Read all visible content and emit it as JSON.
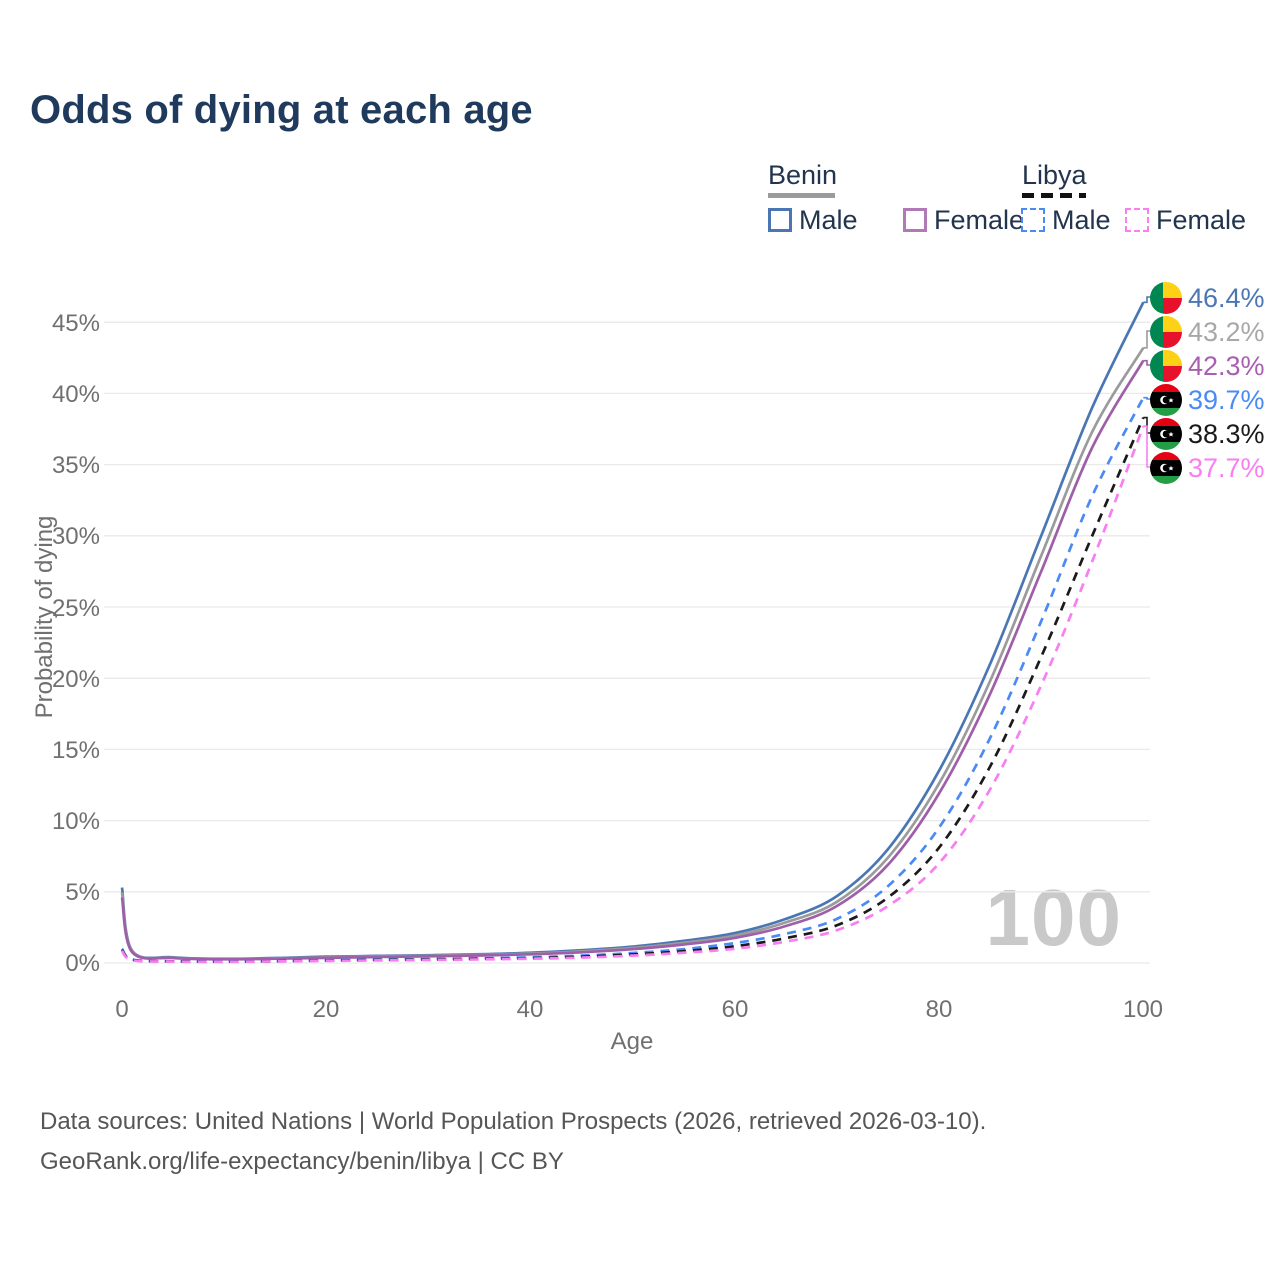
{
  "title": "Odds of dying at each age",
  "legend": {
    "groups": [
      {
        "label": "Benin",
        "line_style": "solid",
        "underline_color": "#9b9b9b",
        "items": [
          {
            "label": "Male",
            "color": "#4a77b4"
          },
          {
            "label": "Female",
            "color": "#b279b8"
          }
        ]
      },
      {
        "label": "Libya",
        "line_style": "dashed",
        "underline_color": "#111111",
        "items": [
          {
            "label": "Male",
            "color": "#4a8af4"
          },
          {
            "label": "Female",
            "color": "#f87ef2"
          }
        ]
      }
    ]
  },
  "watermark_age": "100",
  "footer": {
    "line1": "Data sources: United Nations | World Population Prospects (2026, retrieved 2026-03-10).",
    "line2": "GeoRank.org/life-expectancy/benin/libya | CC BY"
  },
  "chart_data": {
    "type": "line",
    "title": "Odds of dying at each age",
    "xlabel": "Age",
    "ylabel": "Probability of dying",
    "xlim": [
      0,
      100
    ],
    "ylim": [
      0,
      47
    ],
    "grid": "horizontal",
    "legend_position": "top-right",
    "x_tick_values": [
      0,
      20,
      40,
      60,
      80,
      100
    ],
    "x_tick_labels": [
      "0",
      "20",
      "40",
      "60",
      "80",
      "100"
    ],
    "y_tick_values": [
      0,
      5,
      10,
      15,
      20,
      25,
      30,
      35,
      40,
      45
    ],
    "y_tick_labels": [
      "0%",
      "5%",
      "10%",
      "15%",
      "20%",
      "25%",
      "30%",
      "35%",
      "40%",
      "45%"
    ],
    "x": [
      0,
      1,
      5,
      10,
      15,
      20,
      25,
      30,
      35,
      40,
      45,
      50,
      55,
      60,
      65,
      70,
      75,
      80,
      85,
      90,
      95,
      100
    ],
    "series": [
      {
        "name": "Benin Male",
        "country": "Benin",
        "sex": "male",
        "dash": "solid",
        "color": "#4a77b4",
        "label_color": "#4a77b4",
        "end_label": "46.4%",
        "flag": "benin",
        "values": [
          5.3,
          0.85,
          0.4,
          0.3,
          0.35,
          0.45,
          0.5,
          0.55,
          0.62,
          0.72,
          0.9,
          1.15,
          1.55,
          2.1,
          3.1,
          4.7,
          8.0,
          13.5,
          21.0,
          30.0,
          39.0,
          46.4
        ]
      },
      {
        "name": "Benin",
        "country": "Benin",
        "sex": "both",
        "dash": "solid",
        "color": "#9b9b9b",
        "label_color": "#a8a8a8",
        "end_label": "43.2%",
        "flag": "benin",
        "values": [
          4.95,
          0.8,
          0.37,
          0.28,
          0.32,
          0.4,
          0.46,
          0.51,
          0.57,
          0.66,
          0.82,
          1.05,
          1.42,
          1.92,
          2.85,
          4.3,
          7.4,
          12.6,
          19.8,
          28.6,
          37.3,
          43.2
        ]
      },
      {
        "name": "Benin Female",
        "country": "Benin",
        "sex": "female",
        "dash": "solid",
        "color": "#9f5fa8",
        "label_color": "#a95fb0",
        "end_label": "42.3%",
        "flag": "benin",
        "values": [
          4.6,
          0.75,
          0.35,
          0.26,
          0.3,
          0.36,
          0.42,
          0.47,
          0.53,
          0.61,
          0.75,
          0.97,
          1.3,
          1.76,
          2.6,
          4.0,
          6.9,
          11.9,
          18.9,
          27.5,
          36.2,
          42.3
        ]
      },
      {
        "name": "Libya Male",
        "country": "Libya",
        "sex": "male",
        "dash": "dashed",
        "color": "#4a8af4",
        "label_color": "#4a8af4",
        "end_label": "39.7%",
        "flag": "libya",
        "values": [
          1.0,
          0.25,
          0.12,
          0.1,
          0.14,
          0.2,
          0.24,
          0.28,
          0.33,
          0.4,
          0.52,
          0.7,
          0.97,
          1.4,
          2.05,
          3.1,
          5.4,
          9.5,
          15.8,
          24.0,
          32.8,
          39.7
        ]
      },
      {
        "name": "Libya",
        "country": "Libya",
        "sex": "both",
        "dash": "dashed",
        "color": "#1a1a1a",
        "label_color": "#1a1a1a",
        "end_label": "38.3%",
        "flag": "libya",
        "values": [
          0.92,
          0.22,
          0.11,
          0.09,
          0.12,
          0.17,
          0.21,
          0.24,
          0.28,
          0.34,
          0.44,
          0.6,
          0.83,
          1.18,
          1.75,
          2.65,
          4.6,
          8.1,
          13.8,
          21.5,
          30.0,
          38.3
        ]
      },
      {
        "name": "Libya Female",
        "country": "Libya",
        "sex": "female",
        "dash": "dashed",
        "color": "#f87ef2",
        "label_color": "#f87ef2",
        "end_label": "37.7%",
        "flag": "libya",
        "values": [
          0.85,
          0.2,
          0.1,
          0.08,
          0.11,
          0.15,
          0.18,
          0.21,
          0.25,
          0.3,
          0.38,
          0.52,
          0.72,
          1.0,
          1.5,
          2.3,
          4.0,
          7.0,
          12.2,
          19.5,
          28.2,
          37.7
        ]
      }
    ]
  }
}
